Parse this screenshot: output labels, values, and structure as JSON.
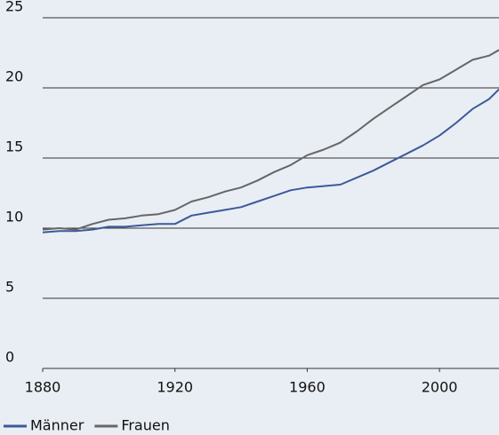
{
  "chart_data": {
    "type": "line",
    "x": [
      1880,
      1885,
      1890,
      1895,
      1900,
      1905,
      1910,
      1915,
      1920,
      1925,
      1930,
      1935,
      1940,
      1945,
      1950,
      1955,
      1960,
      1965,
      1970,
      1975,
      1980,
      1985,
      1990,
      1995,
      2000,
      2005,
      2010,
      2015,
      2018
    ],
    "series": [
      {
        "name": "Männer",
        "color": "#3c5a9a",
        "values": [
          9.7,
          9.8,
          9.8,
          9.9,
          10.1,
          10.1,
          10.2,
          10.3,
          10.3,
          10.9,
          11.1,
          11.3,
          11.5,
          11.9,
          12.3,
          12.7,
          12.9,
          13.0,
          13.1,
          13.6,
          14.1,
          14.7,
          15.3,
          15.9,
          16.6,
          17.5,
          18.5,
          19.2,
          19.9
        ]
      },
      {
        "name": "Frauen",
        "color": "#666666",
        "values": [
          9.9,
          10.0,
          9.9,
          10.3,
          10.6,
          10.7,
          10.9,
          11.0,
          11.3,
          11.9,
          12.2,
          12.6,
          12.9,
          13.4,
          14.0,
          14.5,
          15.2,
          15.6,
          16.1,
          16.9,
          17.8,
          18.6,
          19.4,
          20.2,
          20.6,
          21.3,
          22.0,
          22.3,
          22.7
        ]
      }
    ],
    "xlim": [
      1880,
      2018
    ],
    "xticks": [
      1880,
      1920,
      1960,
      2000
    ],
    "ylim": [
      0,
      25
    ],
    "yticks": [
      0,
      5,
      10,
      15,
      20,
      25
    ],
    "grid": true,
    "legend": "bottom"
  }
}
